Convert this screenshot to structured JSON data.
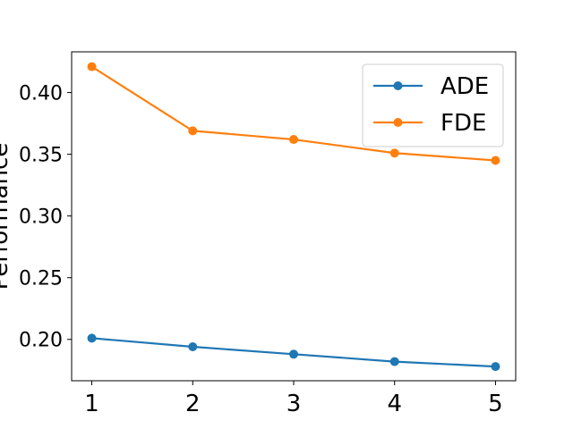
{
  "chart_data": {
    "type": "line",
    "title": "",
    "xlabel": "",
    "ylabel": "Performance",
    "x": [
      1,
      2,
      3,
      4,
      5
    ],
    "xticks": [
      "1",
      "2",
      "3",
      "4",
      "5"
    ],
    "yticks": [
      "0.20",
      "0.25",
      "0.30",
      "0.35",
      "0.40"
    ],
    "xlim": [
      0.8,
      5.2
    ],
    "ylim": [
      0.1665,
      0.433
    ],
    "grid": false,
    "legend_position": "top-right",
    "series": [
      {
        "name": "ADE",
        "color": "#1f77b4",
        "values": [
          0.201,
          0.194,
          0.188,
          0.182,
          0.178
        ]
      },
      {
        "name": "FDE",
        "color": "#ff7f0e",
        "values": [
          0.421,
          0.369,
          0.362,
          0.351,
          0.345
        ]
      }
    ]
  }
}
